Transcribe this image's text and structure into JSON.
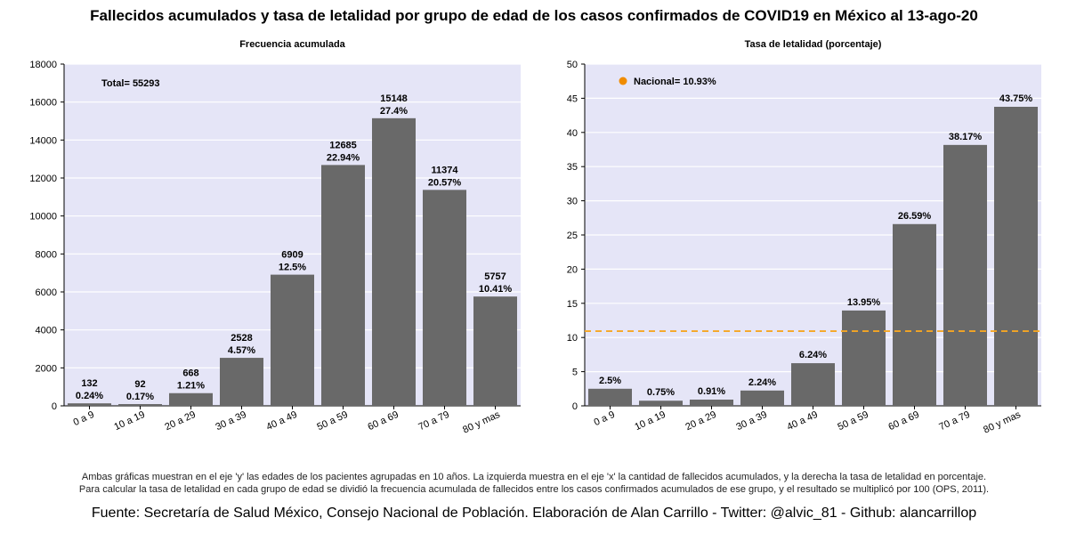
{
  "title": "Fallecidos acumulados y tasa de letalidad por grupo de edad de los casos confirmados de COVID19 en México al 13-ago-20",
  "notes": {
    "line1": "Ambas gráficas muestran en el eje 'y' las edades de los pacientes agrupadas en 10 años. La izquierda muestra en el eje 'x' la cantidad de fallecidos acumulados, y la derecha la tasa de letalidad en porcentaje.",
    "line2": "Para calcular la tasa de letalidad en cada grupo de edad se dividió la frecuencia acumulada de fallecidos entre los casos confirmados acumulados de ese grupo, y el resultado se multiplicó por 100 (OPS, 2011)."
  },
  "footer": "Fuente: Secretaría de Salud México, Consejo Nacional de Población. Elaboración de Alan Carrillo - Twitter: @alvic_81 - Github: alancarrillop",
  "colors": {
    "plot_bg": "#e5e5f7",
    "bar": "#696969",
    "reference_line": "#f5a623",
    "marker": "#f08c00"
  },
  "chart_data": [
    {
      "type": "bar",
      "title": "Frecuencia acumulada",
      "categories": [
        "0 a 9",
        "10 a 19",
        "20 a 29",
        "30 a 39",
        "40 a 49",
        "50 a 59",
        "60 a 69",
        "70 a 79",
        "80 y mas"
      ],
      "values": [
        132,
        92,
        668,
        2528,
        6909,
        12685,
        15148,
        11374,
        5757
      ],
      "labels_top": [
        "132",
        "92",
        "668",
        "2528",
        "6909",
        "12685",
        "15148",
        "11374",
        "5757"
      ],
      "labels_bottom": [
        "0.24%",
        "0.17%",
        "1.21%",
        "4.57%",
        "12.5%",
        "22.94%",
        "27.4%",
        "20.57%",
        "10.41%"
      ],
      "ylim": [
        0,
        18000
      ],
      "yticks": [
        0,
        2000,
        4000,
        6000,
        8000,
        10000,
        12000,
        14000,
        16000,
        18000
      ],
      "annotation": "Total= 55293",
      "grid": true
    },
    {
      "type": "bar",
      "title": "Tasa de letalidad (porcentaje)",
      "categories": [
        "0 a 9",
        "10 a 19",
        "20 a 29",
        "30 a 39",
        "40 a 49",
        "50 a 59",
        "60 a 69",
        "70 a 79",
        "80 y mas"
      ],
      "values": [
        2.5,
        0.75,
        0.91,
        2.24,
        6.24,
        13.95,
        26.59,
        38.17,
        43.75
      ],
      "labels_top": [
        "2.5%",
        "0.75%",
        "0.91%",
        "2.24%",
        "6.24%",
        "13.95%",
        "26.59%",
        "38.17%",
        "43.75%"
      ],
      "ylim": [
        0,
        50
      ],
      "yticks": [
        0,
        5,
        10,
        15,
        20,
        25,
        30,
        35,
        40,
        45,
        50
      ],
      "reference_line": 10.93,
      "legend": "Nacional= 10.93%",
      "grid": true
    }
  ]
}
